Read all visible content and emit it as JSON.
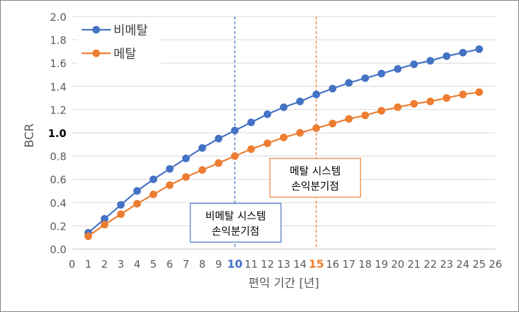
{
  "chart_data": {
    "type": "line",
    "xlabel": "편익 기간 [년]",
    "ylabel": "BCR",
    "xlim": [
      0,
      26
    ],
    "ylim": [
      0.0,
      2.0
    ],
    "x_ticks": [
      0,
      1,
      2,
      3,
      4,
      5,
      6,
      7,
      8,
      9,
      10,
      11,
      12,
      13,
      14,
      15,
      16,
      17,
      18,
      19,
      20,
      21,
      22,
      23,
      24,
      25,
      26
    ],
    "y_ticks": [
      "0.0",
      "0.2",
      "0.4",
      "0.6",
      "0.8",
      "1.0",
      "1.2",
      "1.4",
      "1.6",
      "1.8",
      "2.0"
    ],
    "grid": "horizontal",
    "legend_position": "top-left",
    "x": [
      1,
      2,
      3,
      4,
      5,
      6,
      7,
      8,
      9,
      10,
      11,
      12,
      13,
      14,
      15,
      16,
      17,
      18,
      19,
      20,
      21,
      22,
      23,
      24,
      25
    ],
    "series": [
      {
        "name": "비메탈",
        "color": "#4472c4",
        "values": [
          0.14,
          0.26,
          0.38,
          0.5,
          0.6,
          0.69,
          0.78,
          0.87,
          0.95,
          1.02,
          1.09,
          1.16,
          1.22,
          1.27,
          1.33,
          1.38,
          1.43,
          1.47,
          1.51,
          1.55,
          1.59,
          1.62,
          1.66,
          1.69,
          1.72
        ]
      },
      {
        "name": "메탈",
        "color": "#ed7d31",
        "values": [
          0.11,
          0.21,
          0.3,
          0.39,
          0.47,
          0.55,
          0.62,
          0.68,
          0.74,
          0.8,
          0.86,
          0.91,
          0.96,
          1.0,
          1.04,
          1.08,
          1.12,
          1.15,
          1.19,
          1.22,
          1.25,
          1.27,
          1.3,
          1.33,
          1.35
        ]
      }
    ],
    "reference_lines": [
      {
        "x": 10,
        "color": "#4472c4",
        "label_lines": [
          "비메탈 시스템",
          "손익분기점"
        ]
      },
      {
        "x": 15,
        "color": "#ed7d31",
        "label_lines": [
          "메탈 시스템",
          "손익분기점"
        ]
      }
    ],
    "highlighted_x_ticks": [
      {
        "value": 10,
        "color": "#4472c4"
      },
      {
        "value": 15,
        "color": "#ed7d31"
      }
    ],
    "highlighted_y_tick": "1.0"
  }
}
